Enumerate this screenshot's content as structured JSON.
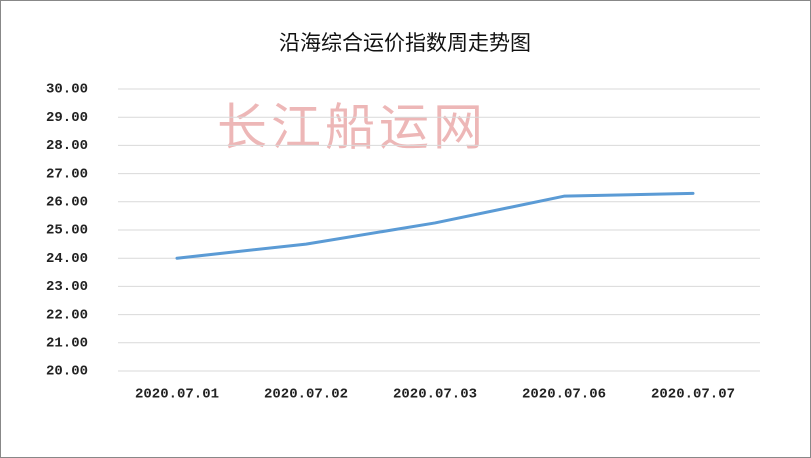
{
  "chart_data": {
    "type": "line",
    "title": "沿海综合运价指数周走势图",
    "watermark": "长江船运网",
    "categories": [
      "2020.07.01",
      "2020.07.02",
      "2020.07.03",
      "2020.07.06",
      "2020.07.07"
    ],
    "series": [
      {
        "name": "沿海综合运价指数",
        "color": "#5b9bd5",
        "values": [
          24.0,
          24.5,
          25.25,
          26.2,
          26.3
        ]
      }
    ],
    "ylim": [
      20,
      30
    ],
    "yticks": [
      {
        "value": 20,
        "label": "20.00"
      },
      {
        "value": 21,
        "label": "21.00"
      },
      {
        "value": 22,
        "label": "22.00"
      },
      {
        "value": 23,
        "label": "23.00"
      },
      {
        "value": 24,
        "label": "24.00"
      },
      {
        "value": 25,
        "label": "25.00"
      },
      {
        "value": 26,
        "label": "26.00"
      },
      {
        "value": 27,
        "label": "27.00"
      },
      {
        "value": 28,
        "label": "28.00"
      },
      {
        "value": 29,
        "label": "29.00"
      },
      {
        "value": 30,
        "label": "30.00"
      }
    ],
    "grid": true
  }
}
